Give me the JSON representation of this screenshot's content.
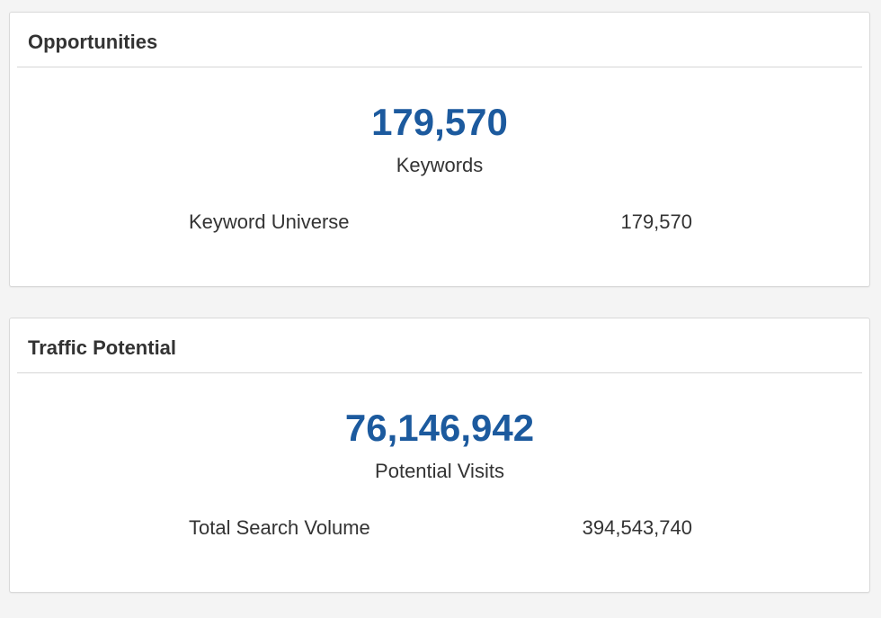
{
  "opportunities": {
    "title": "Opportunities",
    "headline_value": "179,570",
    "headline_label": "Keywords",
    "stat": {
      "label": "Keyword Universe",
      "value": "179,570"
    }
  },
  "traffic": {
    "title": "Traffic Potential",
    "headline_value": "76,146,942",
    "headline_label": "Potential Visits",
    "stat": {
      "label": "Total Search Volume",
      "value": "394,543,740"
    }
  },
  "colors": {
    "accent": "#1c5a9e",
    "text": "#333333",
    "background": "#f4f4f4",
    "panel": "#ffffff"
  }
}
